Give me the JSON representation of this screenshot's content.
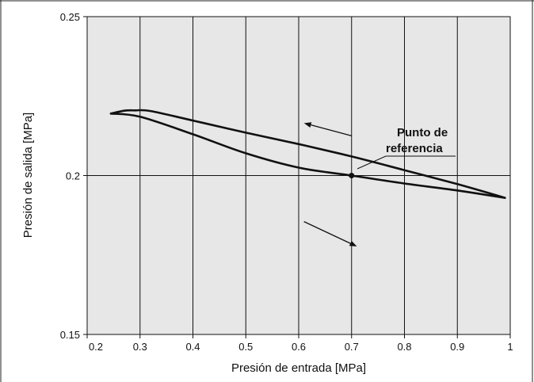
{
  "chart_data": {
    "type": "line",
    "xlabel": "Presión de entrada [MPa]",
    "ylabel": "Presión de salida [MPa]",
    "xlim": [
      0.2,
      1.0
    ],
    "ylim": [
      0.15,
      0.25
    ],
    "grid": true,
    "x_ticks": [
      0.2,
      0.3,
      0.4,
      0.5,
      0.6,
      0.7,
      0.8,
      0.9,
      1.0
    ],
    "x_tick_labels": [
      "0.2",
      "0.3",
      "0.4",
      "0.5",
      "0.6",
      "0.7",
      "0.8",
      "0.9",
      "1"
    ],
    "y_ticks": [
      0.15,
      0.2,
      0.25
    ],
    "y_tick_labels": [
      "0.15",
      "0.2",
      "0.25"
    ],
    "series": [
      {
        "x": [
          0.245,
          0.27,
          0.29,
          0.32,
          0.4,
          0.5,
          0.6,
          0.7,
          0.8,
          0.9,
          0.99
        ],
        "y": [
          0.2195,
          0.2204,
          0.2205,
          0.2203,
          0.2173,
          0.2135,
          0.2099,
          0.206,
          0.2017,
          0.1973,
          0.193
        ]
      },
      {
        "x": [
          0.99,
          0.9,
          0.8,
          0.7,
          0.6,
          0.5,
          0.4,
          0.3,
          0.245
        ],
        "y": [
          0.193,
          0.1953,
          0.1975,
          0.2,
          0.2025,
          0.207,
          0.213,
          0.2185,
          0.2195
        ]
      }
    ],
    "reference_point": {
      "x": 0.7,
      "y": 0.2
    },
    "annotations": {
      "reference_line1": "Punto de",
      "reference_line2": "referencia"
    },
    "arrows": [
      {
        "from": [
          0.7,
          0.2125
        ],
        "to": [
          0.61,
          0.2165
        ]
      },
      {
        "from": [
          0.61,
          0.1855
        ],
        "to": [
          0.71,
          0.1777
        ]
      }
    ]
  }
}
